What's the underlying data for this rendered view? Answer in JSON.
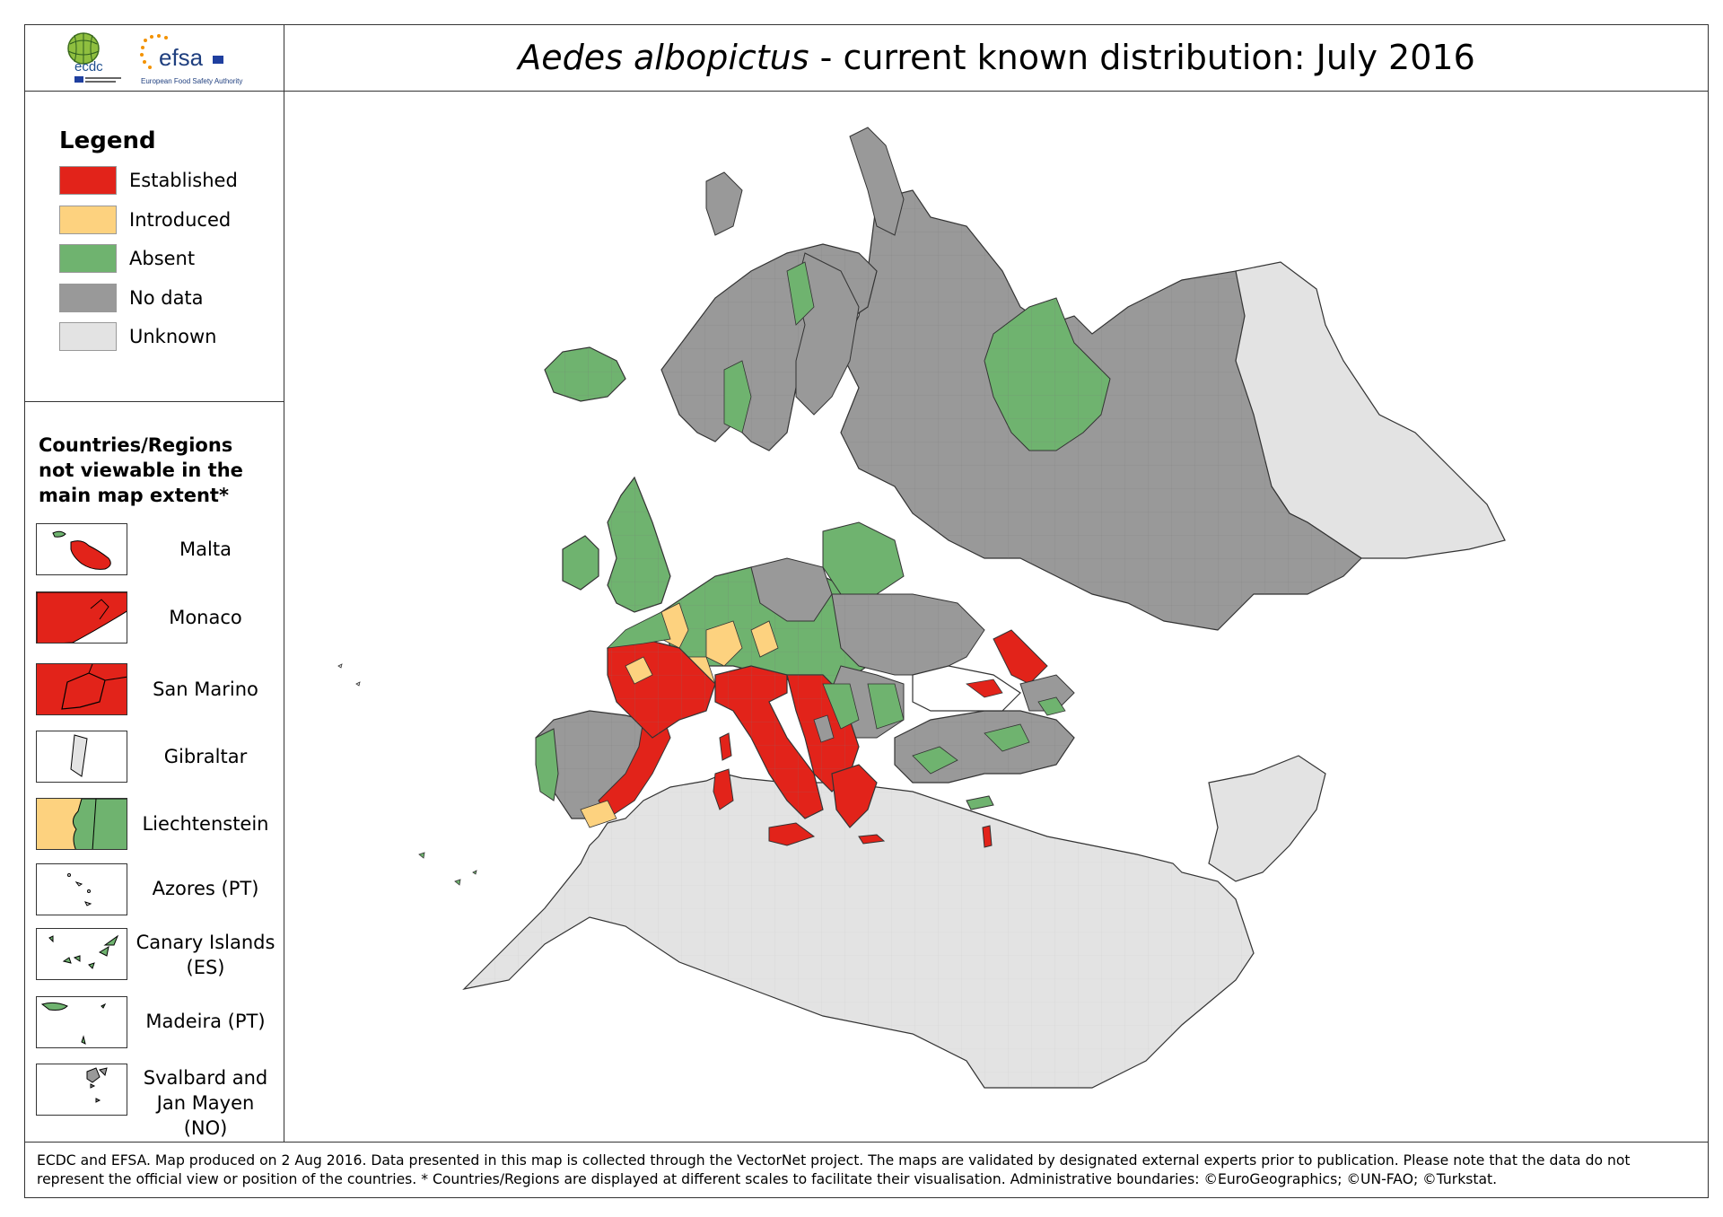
{
  "header": {
    "title_italic": "Aedes albopictus",
    "title_rest": " - current known distribution: July 2016",
    "logos": [
      {
        "icon": "ecdc-globe-logo",
        "text": "ecdc"
      },
      {
        "icon": "efsa-stars-logo",
        "text": "efsa",
        "subtext": "European Food Safety Authority"
      }
    ]
  },
  "legend": {
    "title": "Legend",
    "items": [
      {
        "label": "Established",
        "color": "#e2231a"
      },
      {
        "label": "Introduced",
        "color": "#fdd27f"
      },
      {
        "label": "Absent",
        "color": "#6fb36f"
      },
      {
        "label": "No data",
        "color": "#999999"
      },
      {
        "label": "Unknown",
        "color": "#e3e3e3"
      }
    ]
  },
  "insets": {
    "title_lines": [
      "Countries/Regions",
      "not viewable in the",
      "main map extent*"
    ],
    "items": [
      {
        "label_lines": [
          "Malta"
        ],
        "status": "Established"
      },
      {
        "label_lines": [
          "Monaco"
        ],
        "status": "Established"
      },
      {
        "label_lines": [
          "San Marino"
        ],
        "status": "Established"
      },
      {
        "label_lines": [
          "Gibraltar"
        ],
        "status": "Unknown"
      },
      {
        "label_lines": [
          "Liechtenstein"
        ],
        "status": "Introduced/Absent"
      },
      {
        "label_lines": [
          "Azores (PT)"
        ],
        "status": "Unknown"
      },
      {
        "label_lines": [
          "Canary Islands",
          "(ES)"
        ],
        "status": "Absent"
      },
      {
        "label_lines": [
          "Madeira (PT)"
        ],
        "status": "Absent"
      },
      {
        "label_lines": [
          "Svalbard and",
          "Jan Mayen (NO)"
        ],
        "status": "No data"
      }
    ]
  },
  "map_regions": [
    {
      "name": "Iceland",
      "status": "Absent"
    },
    {
      "name": "Scandinavia",
      "status": "No data"
    },
    {
      "name": "Russia",
      "status": "No data"
    },
    {
      "name": "Eastern Russia (south-east)",
      "status": "Absent"
    },
    {
      "name": "Kazakhstan / Central Asia",
      "status": "Unknown"
    },
    {
      "name": "North Africa",
      "status": "Unknown"
    },
    {
      "name": "Middle East",
      "status": "Unknown"
    },
    {
      "name": "British Isles",
      "status": "Absent"
    },
    {
      "name": "Iberia",
      "status": "No data"
    },
    {
      "name": "France",
      "status": "Established"
    },
    {
      "name": "Italy",
      "status": "Established"
    },
    {
      "name": "Balkans",
      "status": "Established"
    },
    {
      "name": "Central Europe",
      "status": "Absent"
    },
    {
      "name": "Belarus",
      "status": "Absent"
    },
    {
      "name": "Turkey",
      "status": "No data"
    },
    {
      "name": "Black Sea coast (Russia)",
      "status": "Established"
    },
    {
      "name": "Corsica / Sardinia",
      "status": "Established"
    },
    {
      "name": "Greece",
      "status": "Established"
    },
    {
      "name": "Cyprus",
      "status": "Absent"
    }
  ],
  "footer": {
    "text": "ECDC and EFSA. Map produced on 2 Aug 2016. Data presented in this map is collected through the VectorNet project. The maps are validated by designated external experts prior to publication. Please note that the data do not represent the official view or position of the countries. * Countries/Regions are displayed at different scales to facilitate their visualisation. Administrative boundaries: ©EuroGeographics; ©UN-FAO; ©Turkstat."
  }
}
